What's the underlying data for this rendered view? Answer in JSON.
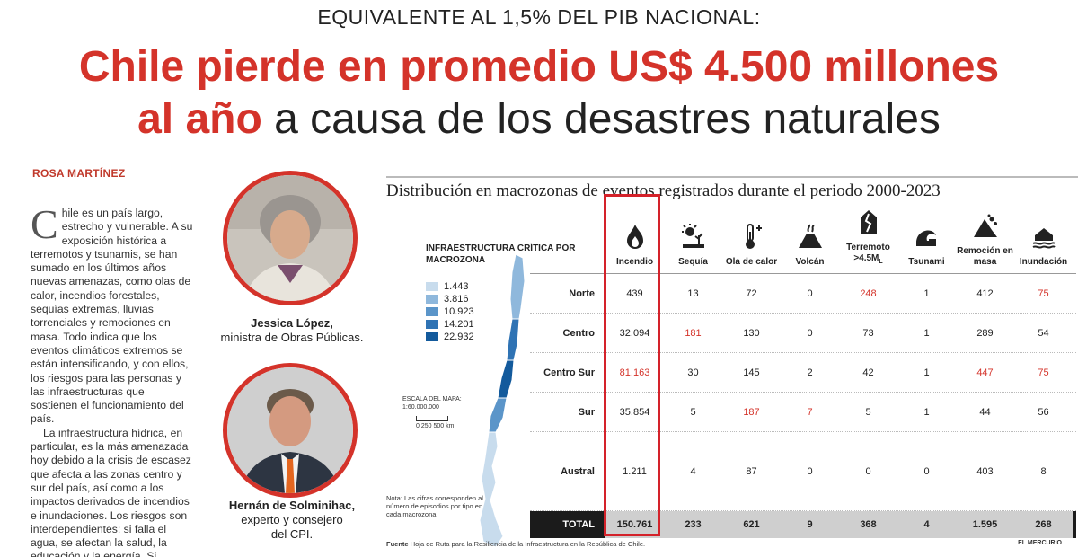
{
  "kicker": "EQUIVALENTE AL 1,5% DEL PIB NACIONAL:",
  "headline": {
    "line1": "Chile pierde en promedio US$ 4.500 millones",
    "line2_red": "al año",
    "line2_rest": " a causa de los desastres naturales"
  },
  "author": "ROSA MARTÍNEZ",
  "article": {
    "dropcap": "C",
    "p1": "hile es un país largo, estrecho y vulnerable. A su exposición histórica a terremotos y tsunamis, se han sumado en los últimos años nuevas amenazas, como olas de calor, incendios forestales, sequías extremas, lluvias torrenciales y remociones en masa. Todo indica que los eventos climáticos extremos se están intensificando, y con ellos, los riesgos para las personas y las infraestructuras que sostienen el funcionamiento del país.",
    "p2": "La infraestructura hídrica, en particular, es la más amenazada hoy debido a la crisis de escasez que afecta a las zonas centro y sur del país, así como a los impactos derivados de incendios e inundaciones. Los riesgos son interdependientes: si falla el agua, se afectan la salud, la educación y la energía. Si colapsa una ruta clave, se"
  },
  "people": [
    {
      "name": "Jessica López,",
      "role": "ministra de Obras Públicas."
    },
    {
      "name": "Hernán de Solminihac,",
      "role_line1": "experto y consejero",
      "role_line2": "del CPI."
    }
  ],
  "chart_title": "Distribución en macrozonas de eventos registrados durante el periodo 2000-2023",
  "map": {
    "legend_title": "INFRAESTRUCTURA CRÍTICA POR MACROZONA",
    "legend": [
      {
        "label": "1.443",
        "color": "#c8dced"
      },
      {
        "label": "3.816",
        "color": "#8fb8dc"
      },
      {
        "label": "10.923",
        "color": "#5b95c9"
      },
      {
        "label": "14.201",
        "color": "#2f73b4"
      },
      {
        "label": "22.932",
        "color": "#135a9c"
      }
    ],
    "scale_title": "ESCALA DEL MAPA:",
    "scale_value": "1:60.000.000",
    "scale_labels": "0   250   500 km",
    "note": "Nota: Las cifras corresponden al número de episodios por tipo en cada macrozona."
  },
  "table": {
    "columns": [
      {
        "label": "Incendio",
        "icon": "fire-icon"
      },
      {
        "label": "Sequía",
        "icon": "drought-icon"
      },
      {
        "label": "Ola de calor",
        "icon": "thermometer-icon"
      },
      {
        "label": "Volcán",
        "icon": "volcano-icon"
      },
      {
        "label": "Terremoto >4.5ML",
        "icon": "earthquake-icon"
      },
      {
        "label": "Tsunami",
        "icon": "tsunami-icon"
      },
      {
        "label": "Remoción en masa",
        "icon": "landslide-icon"
      },
      {
        "label": "Inundación",
        "icon": "flood-icon"
      }
    ],
    "rows": [
      {
        "label": "Norte",
        "values": [
          "439",
          "13",
          "72",
          "0",
          "248",
          "1",
          "412",
          "75"
        ],
        "red": [
          4,
          7
        ]
      },
      {
        "label": "Centro",
        "values": [
          "32.094",
          "181",
          "130",
          "0",
          "73",
          "1",
          "289",
          "54"
        ],
        "red": [
          1
        ]
      },
      {
        "label": "Centro Sur",
        "values": [
          "81.163",
          "30",
          "145",
          "2",
          "42",
          "1",
          "447",
          "75"
        ],
        "red": [
          0,
          6,
          7
        ]
      },
      {
        "label": "Sur",
        "values": [
          "35.854",
          "5",
          "187",
          "7",
          "5",
          "1",
          "44",
          "56"
        ],
        "red": [
          2,
          3
        ]
      },
      {
        "label": "Austral",
        "values": [
          "1.211",
          "4",
          "87",
          "0",
          "0",
          "0",
          "403",
          "8"
        ],
        "red": []
      }
    ],
    "total": {
      "label": "TOTAL",
      "values": [
        "150.761",
        "233",
        "621",
        "9",
        "368",
        "4",
        "1.595",
        "268"
      ]
    }
  },
  "source_label": "Fuente",
  "source_text": "Hoja de Ruta para la Resiliencia de la Infraestructura en la República de Chile.",
  "publisher": "EL MERCURIO",
  "colors": {
    "accent_red": "#d4332a",
    "highlight_box": "#d4222a"
  }
}
